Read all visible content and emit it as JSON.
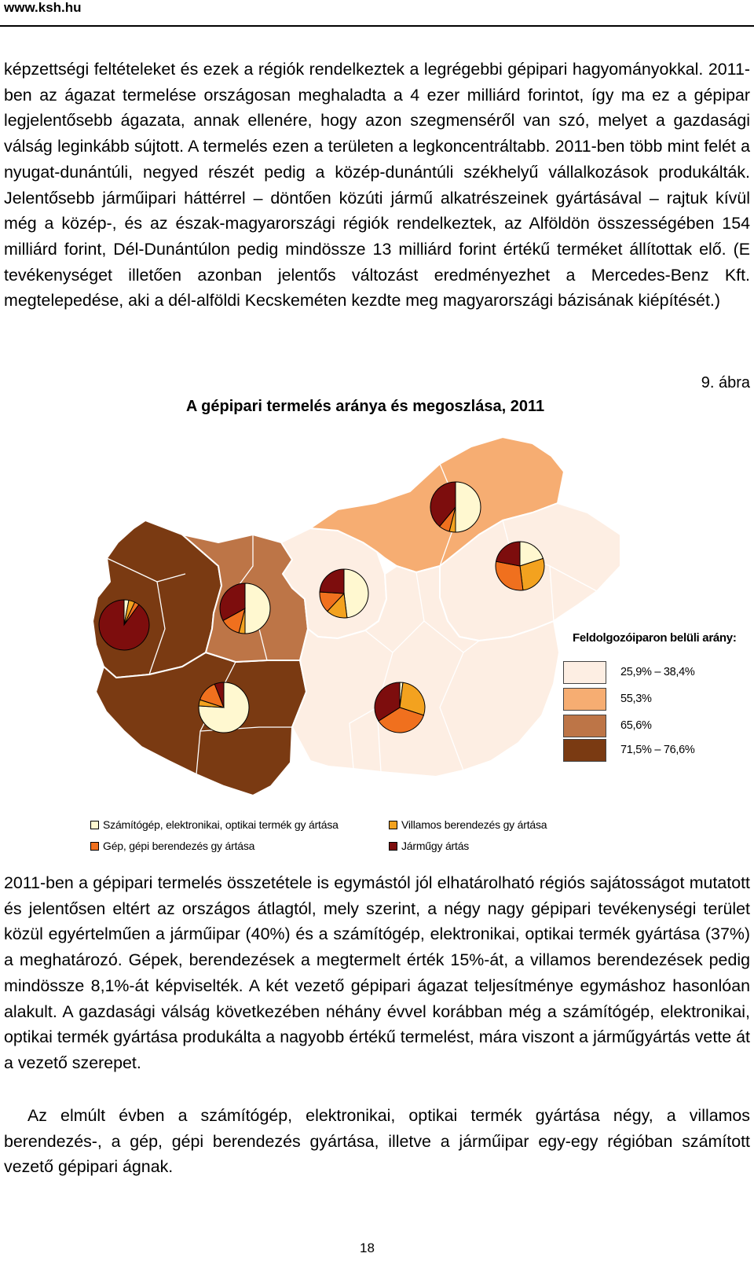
{
  "header": {
    "site": "www.ksh.hu"
  },
  "paragraphs": {
    "p1": "képzettségi feltételeket és ezek a régiók rendelkeztek a legrégebbi gépipari hagyományokkal. 2011-ben az ágazat termelése országosan meghaladta a 4 ezer milliárd forintot, így ma ez a gépipar legjelentősebb ágazata, annak ellenére, hogy azon szegmenséről van szó, melyet a gazdasági válság leginkább sújtott. A termelés ezen a területen a legkoncentráltabb. 2011-ben több mint felét a nyugat-dunántúli, negyed részét pedig a közép-dunántúli székhelyű vállalkozások produkálták. Jelentősebb járműipari háttérrel – döntően közúti jármű alkatrészeinek gyártásával – rajtuk kívül még a közép-, és az észak-magyarországi régiók rendelkeztek, az Alföldön összességében 154 milliárd forint, Dél-Dunántúlon pedig mindössze 13 milliárd forint értékű terméket állítottak elő. (E tevékenységet illetően azonban jelentős változást eredményezhet a Mercedes-Benz Kft. megtelepedése, aki a dél-alföldi Kecskeméten kezdte meg magyarországi bázisának kiépítését.)",
    "p2": "2011-ben a gépipari termelés összetétele is egymástól jól elhatárolható régiós sajátosságot mutatott és jelentősen eltért az országos átlagtól, mely szerint, a négy nagy gépipari tevékenységi terület közül egyértelműen a járműipar (40%) és a számítógép, elektronikai, optikai termék gyártása (37%) a meghatározó. Gépek, berendezések a megtermelt érték 15%-át, a villamos berendezések pedig mindössze 8,1%-át képviselték. A két vezető gépipari ágazat teljesítménye egymáshoz hasonlóan alakult. A gazdasági válság következében néhány évvel korábban még a számítógép, elektronikai, optikai termék gyártása produkálta a nagyobb értékű termelést, mára viszont a járműgyártás vette át a vezető szerepet.",
    "p3": "Az elmúlt évben a számítógép, elektronikai, optikai termék gyártása négy, a villamos berendezés-, a gép, gépi berendezés gyártása, illetve a járműipar egy-egy régióban számított vezető gépipari ágnak."
  },
  "figure": {
    "number": "9. ábra",
    "title": "A gépipari termelés aránya és megoszlása, 2011"
  },
  "choropleth_legend": {
    "title": "Feldolgozóiparon belüli arány:",
    "classes": [
      {
        "label": "25,9% – 38,4%",
        "color": "#fdeee3"
      },
      {
        "label": "55,3%",
        "color": "#f6ad72"
      },
      {
        "label": "65,6%",
        "color": "#bd7547"
      },
      {
        "label": "71,5% – 76,6%",
        "color": "#7a3a12"
      }
    ]
  },
  "pie_legend": [
    {
      "label": "Számítógép, elektronikai, optikai termék gy ártása",
      "color": "#fff8d0"
    },
    {
      "label": "Villamos berendezés gy ártása",
      "color": "#f3a21f"
    },
    {
      "label": "Gép, gépi berendezés gy ártása",
      "color": "#f0701e"
    },
    {
      "label": "Járműgy ártás",
      "color": "#7d0d0d"
    }
  ],
  "page_number": "18"
}
